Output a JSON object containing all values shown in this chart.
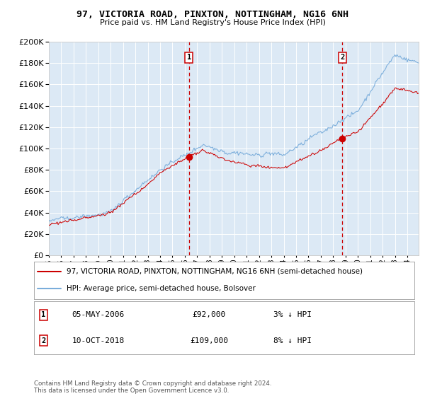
{
  "title": "97, VICTORIA ROAD, PINXTON, NOTTINGHAM, NG16 6NH",
  "subtitle": "Price paid vs. HM Land Registry's House Price Index (HPI)",
  "hpi_label": "HPI: Average price, semi-detached house, Bolsover",
  "property_label": "97, VICTORIA ROAD, PINXTON, NOTTINGHAM, NG16 6NH (semi-detached house)",
  "sale1_date": "05-MAY-2006",
  "sale1_price": 92000,
  "sale1_label": "£92,000",
  "sale1_pct": "3% ↓ HPI",
  "sale1_year": 2006.35,
  "sale2_date": "10-OCT-2018",
  "sale2_price": 109000,
  "sale2_label": "£109,000",
  "sale2_pct": "8% ↓ HPI",
  "sale2_year": 2018.78,
  "ylim": [
    0,
    200000
  ],
  "yticks": [
    0,
    20000,
    40000,
    60000,
    80000,
    100000,
    120000,
    140000,
    160000,
    180000,
    200000
  ],
  "bg_color": "#dce9f5",
  "grid_color": "#ffffff",
  "hpi_color": "#7aaddb",
  "property_color": "#cc0000",
  "footnote": "Contains HM Land Registry data © Crown copyright and database right 2024.\nThis data is licensed under the Open Government Licence v3.0."
}
